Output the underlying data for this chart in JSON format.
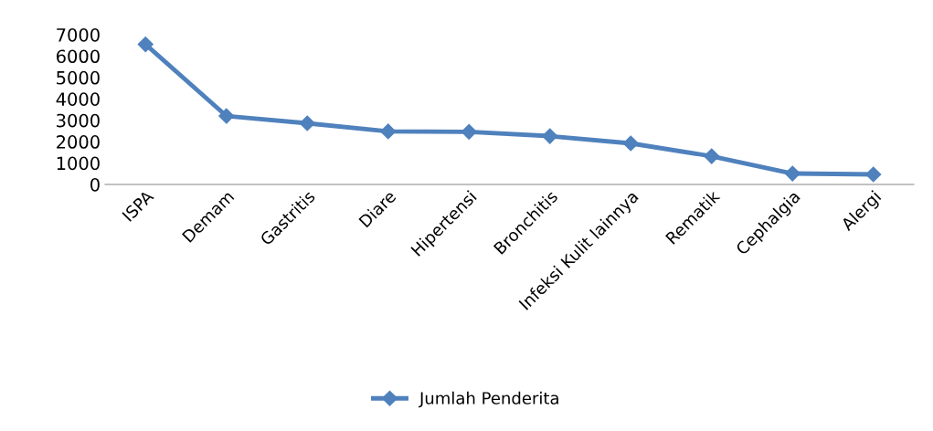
{
  "chart_data": {
    "type": "line",
    "categories": [
      "ISPA",
      "Demam",
      "Gastritis",
      "Diare",
      "Hipertensi",
      "Bronchitis",
      "Infeksi Kulit lainnya",
      "Rematik",
      "Cephalgia",
      "Alergi"
    ],
    "series": [
      {
        "name": "Jumlah Penderita",
        "color": "#4f81bd",
        "values": [
          6550,
          3200,
          2860,
          2480,
          2460,
          2260,
          1920,
          1320,
          510,
          470
        ]
      }
    ],
    "ylim": [
      0,
      7000
    ],
    "yticks": [
      0,
      1000,
      2000,
      3000,
      4000,
      5000,
      6000,
      7000
    ],
    "grid": false,
    "legend": "bottom",
    "marker": "diamond",
    "line_style": "solid"
  }
}
